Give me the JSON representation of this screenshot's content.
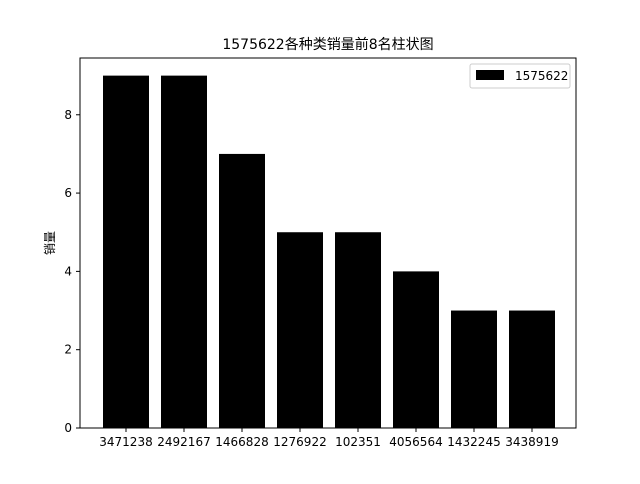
{
  "chart_data": {
    "type": "bar",
    "title": "1575622各种类销量前8名柱状图",
    "xlabel": "",
    "ylabel": "销量",
    "categories": [
      "3471238",
      "2492167",
      "1466828",
      "1276922",
      "102351",
      "4056564",
      "1432245",
      "3438919"
    ],
    "series": [
      {
        "name": "1575622",
        "values": [
          9,
          9,
          7,
          5,
          5,
          4,
          3,
          3
        ],
        "color": "#000000"
      }
    ],
    "ylim": [
      0,
      9.45
    ],
    "yticks": [
      0,
      2,
      4,
      6,
      8
    ],
    "grid": false,
    "legend_position": "top-right"
  }
}
